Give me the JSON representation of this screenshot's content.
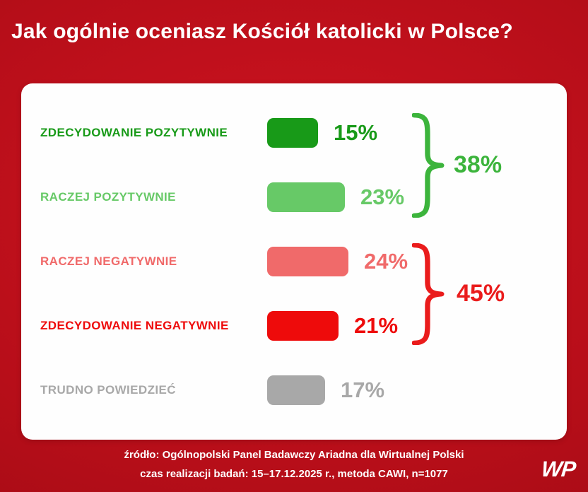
{
  "title": "Jak ogólnie oceniasz Kościół katolicki w Polsce?",
  "chart_data": {
    "type": "bar",
    "title": "Jak ogólnie oceniasz Kościół katolicki w Polsce?",
    "categories": [
      "ZDECYDOWANIE POZYTYWNIE",
      "RACZEJ POZYTYWNIE",
      "RACZEJ NEGATYWNIE",
      "ZDECYDOWANIE NEGATYWNIE",
      "TRUDNO POWIEDZIEĆ"
    ],
    "values": [
      15,
      23,
      24,
      21,
      17
    ],
    "unit": "%",
    "colors": [
      "#189a18",
      "#67c967",
      "#f06a6a",
      "#ee0b0b",
      "#a8a8a8"
    ],
    "groups": [
      {
        "label": "38%",
        "value": 38,
        "members": [
          "ZDECYDOWANIE POZYTYWNIE",
          "RACZEJ POZYTYWNIE"
        ],
        "color": "#3cb43c"
      },
      {
        "label": "45%",
        "value": 45,
        "members": [
          "RACZEJ NEGATYWNIE",
          "ZDECYDOWANIE NEGATYWNIE"
        ],
        "color": "#ea1c1c"
      }
    ],
    "legend_position": "none",
    "grid": false
  },
  "rows": [
    {
      "label": "ZDECYDOWANIE POZYTYWNIE",
      "value": "15%",
      "color": "#189a18"
    },
    {
      "label": "RACZEJ POZYTYWNIE",
      "value": "23%",
      "color": "#67c967"
    },
    {
      "label": "RACZEJ NEGATYWNIE",
      "value": "24%",
      "color": "#f06a6a"
    },
    {
      "label": "ZDECYDOWANIE NEGATYWNIE",
      "value": "21%",
      "color": "#ee0b0b"
    },
    {
      "label": "TRUDNO POWIEDZIEĆ",
      "value": "17%",
      "color": "#a8a8a8"
    }
  ],
  "groups": [
    {
      "label": "38%",
      "color": "#3cb43c"
    },
    {
      "label": "45%",
      "color": "#ea1c1c"
    }
  ],
  "footer": {
    "line1": "źródło: Ogólnopolski Panel Badawczy Ariadna dla Wirtualnej Polski",
    "line2": "czas realizacji badań: 15–17.12.2025 r., metoda CAWI, n=1077"
  },
  "logo": {
    "text": "WP"
  },
  "colors": {
    "background": "#b70e19",
    "card": "#fefefe",
    "title_text": "#ffffff"
  }
}
